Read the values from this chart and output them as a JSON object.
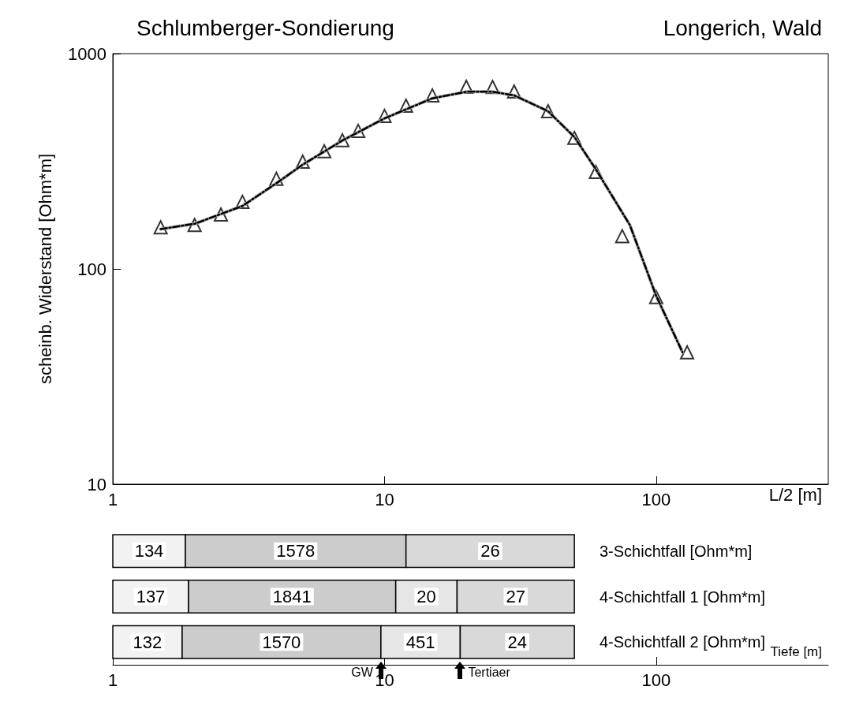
{
  "chart_data": [
    {
      "type": "line",
      "title": "Schlumberger-Sondierung",
      "subtitle": "Longerich, Wald",
      "xlabel": "L/2 [m]",
      "ylabel": "scheinb. Widerstand [Ohm*m]",
      "log": "xy",
      "xlim": [
        1,
        430
      ],
      "xticks": [
        1,
        10,
        100
      ],
      "ylim": [
        10,
        1000
      ],
      "yticks": [
        10,
        100,
        1000
      ],
      "series": [
        {
          "type": "line",
          "color": "#aaaaaa",
          "line_style": "solid",
          "marker": "none",
          "x": [
            1.5,
            2,
            3,
            4,
            5,
            7,
            10,
            15,
            20,
            25,
            30,
            40,
            50,
            60,
            80,
            100,
            125
          ],
          "values": [
            153,
            162,
            196,
            250,
            305,
            395,
            500,
            620,
            665,
            665,
            640,
            540,
            410,
            290,
            160,
            75,
            41
          ]
        },
        {
          "type": "line",
          "color": "#000000",
          "line_style": "dashed",
          "marker": "none",
          "x": [
            1.5,
            2,
            3,
            4,
            5,
            7,
            10,
            15,
            20,
            25,
            30,
            40,
            50,
            60,
            80,
            100,
            125
          ],
          "values": [
            153,
            162,
            196,
            250,
            305,
            395,
            500,
            620,
            665,
            665,
            640,
            540,
            410,
            290,
            160,
            75,
            41
          ]
        },
        {
          "type": "scatter",
          "color": "#000000",
          "marker": "triangle",
          "x": [
            1.5,
            2,
            2.5,
            3,
            4,
            5,
            6,
            7,
            8,
            10,
            12,
            15,
            20,
            25,
            30,
            40,
            50,
            60,
            75,
            100,
            130
          ],
          "values": [
            156,
            160,
            179,
            205,
            262,
            315,
            352,
            396,
            438,
            514,
            573,
            640,
            702,
            700,
            667,
            540,
            406,
            282,
            142,
            74,
            41
          ]
        }
      ]
    },
    {
      "type": "bar",
      "orientation": "horizontal",
      "xlabel": "Tiefe [m]",
      "log": "x",
      "xlim": [
        1,
        430
      ],
      "xticks": [
        1,
        10,
        100
      ],
      "categories": [
        "3-Schichtfall [Ohm*m]",
        "4-Schichtfall 1 [Ohm*m]",
        "4-Schichtfall 2 [Ohm*m]"
      ],
      "series": [
        {
          "color": "#f2f2f2",
          "base": [
            1,
            1,
            1
          ],
          "values": [
            0.85,
            0.9,
            0.8
          ]
        },
        {
          "color": "#cccccc",
          "base": [
            1.85,
            1.9,
            1.8
          ],
          "values": [
            10.15,
            9.1,
            7.9
          ]
        },
        {
          "color": "#e6e6e6",
          "base": [
            null,
            11,
            9.7
          ],
          "values": [
            null,
            7.5,
            9.3
          ]
        },
        {
          "color": "#d9d9d9",
          "base": [
            12,
            18.5,
            19
          ],
          "values": [
            38,
            31.5,
            31
          ]
        }
      ],
      "annotations": [
        "134",
        "1578",
        "26",
        "137",
        "1841",
        "20",
        "27",
        "132",
        "1570",
        "451",
        "24",
        {
          "text": "GW",
          "x": 9.7,
          "y": "4-Schichtfall 2 [Ohm*m]"
        },
        {
          "text": "Tertiaer",
          "x": 19,
          "y": "4-Schichtfall 2 [Ohm*m]"
        }
      ]
    }
  ]
}
